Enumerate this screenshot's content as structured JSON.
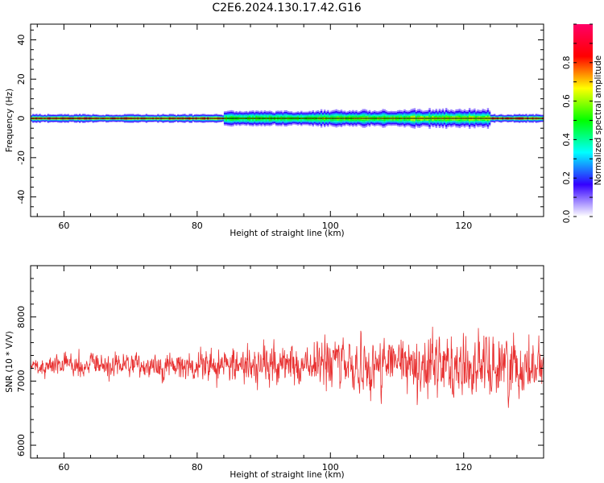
{
  "title": "C2E6.2024.130.17.42.G16",
  "chart_data": [
    {
      "type": "heatmap",
      "xlabel": "Height of straight line (km)",
      "ylabel": "Frequency (Hz)",
      "xlim": [
        55,
        132
      ],
      "ylim": [
        -50,
        48
      ],
      "x_ticks": [
        60,
        80,
        100,
        120
      ],
      "y_ticks": [
        40,
        20,
        0,
        -20,
        -40
      ],
      "colorbar": {
        "label": "Normalized spectral amplitude",
        "range": [
          0,
          1
        ],
        "ticks": [
          0.0,
          0.2,
          0.4,
          0.6,
          0.8
        ],
        "colormap": [
          "#ffffff",
          "#3300ff",
          "#00ffff",
          "#00ff00",
          "#ffff00",
          "#ff0000",
          "#ff0066"
        ]
      },
      "peak_frequency_hz": 0,
      "segments": [
        {
          "x": [
            55,
            68
          ],
          "spread_hz": 2.0,
          "peak": 0.88
        },
        {
          "x": [
            68,
            84
          ],
          "spread_hz": 2.0,
          "peak": 0.85
        },
        {
          "x": [
            84,
            98
          ],
          "spread_hz": 3.5,
          "peak": 0.55
        },
        {
          "x": [
            98,
            112
          ],
          "spread_hz": 4.0,
          "peak": 0.6
        },
        {
          "x": [
            112,
            124
          ],
          "spread_hz": 4.5,
          "peak": 0.65
        },
        {
          "x": [
            124,
            132
          ],
          "spread_hz": 2.0,
          "peak": 0.9
        }
      ]
    },
    {
      "type": "line",
      "xlabel": "Height of straight line (km)",
      "ylabel": "SNR (10 * V/V)",
      "xlim": [
        55,
        132
      ],
      "ylim": [
        5800,
        8800
      ],
      "x_ticks": [
        60,
        80,
        100,
        120
      ],
      "y_ticks": [
        6000,
        7000,
        8000
      ],
      "series": [
        {
          "color": "#e83030",
          "x_range": [
            55,
            132
          ],
          "mean": 7250,
          "envelope": [
            {
              "x": 55,
              "amp": 350
            },
            {
              "x": 68,
              "amp": 400
            },
            {
              "x": 83,
              "amp": 550
            },
            {
              "x": 86,
              "amp": 700
            },
            {
              "x": 97,
              "amp": 650
            },
            {
              "x": 100,
              "amp": 1000
            },
            {
              "x": 110,
              "amp": 900
            },
            {
              "x": 120,
              "amp": 1100
            },
            {
              "x": 132,
              "amp": 900
            }
          ]
        }
      ]
    }
  ]
}
